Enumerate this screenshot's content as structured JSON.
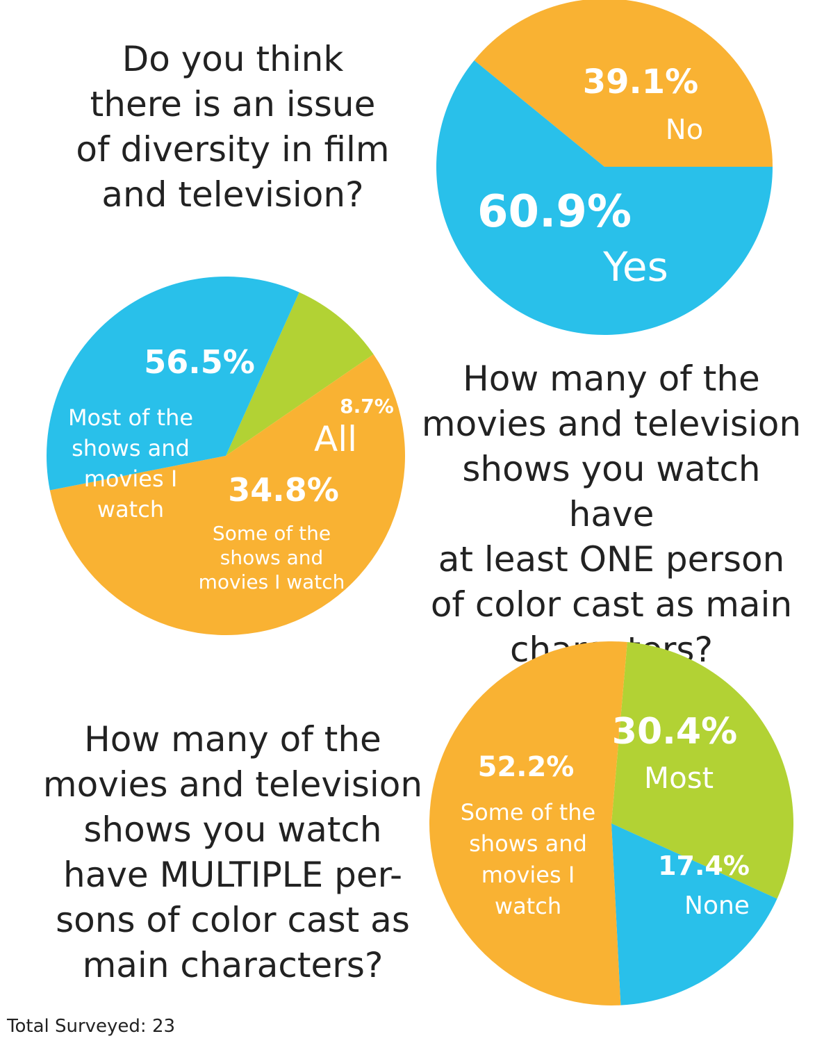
{
  "colors": {
    "orange": "#F9B233",
    "blue": "#29C0EA",
    "green": "#B2D234",
    "text": "#222222"
  },
  "chart_data": [
    {
      "type": "pie",
      "title": "Do you think\nthere is an issue\nof diversity in film\nand television?",
      "slices": [
        {
          "value": 39.1,
          "pct": "39.1%",
          "label": "No",
          "color": "#F9B233"
        },
        {
          "value": 60.9,
          "pct": "60.9%",
          "label": "Yes",
          "color": "#29C0EA"
        }
      ]
    },
    {
      "type": "pie",
      "title": "How many of the\nmovies and television\nshows you watch have\nat least ONE person\nof color cast as main\ncharacters?",
      "slices": [
        {
          "value": 8.7,
          "pct": "8.7%",
          "label": "All",
          "color": "#B2D234"
        },
        {
          "value": 34.8,
          "pct": "34.8%",
          "label": "Some of the\nshows and\nmovies I watch",
          "color": "#29C0EA"
        },
        {
          "value": 56.5,
          "pct": "56.5%",
          "label": "Most of the\nshows and\nmovies I\nwatch",
          "color": "#F9B233"
        }
      ]
    },
    {
      "type": "pie",
      "title": "How many of the\nmovies and television\nshows you watch\nhave MULTIPLE per-\nsons of color cast as\nmain characters?",
      "slices": [
        {
          "value": 30.4,
          "pct": "30.4%",
          "label": "Most",
          "color": "#B2D234"
        },
        {
          "value": 17.4,
          "pct": "17.4%",
          "label": "None",
          "color": "#29C0EA"
        },
        {
          "value": 52.2,
          "pct": "52.2%",
          "label": "Some of the\nshows and\nmovies I\nwatch",
          "color": "#F9B233"
        }
      ]
    }
  ],
  "footer": {
    "total_surveyed": "Total Surveyed: 23"
  }
}
